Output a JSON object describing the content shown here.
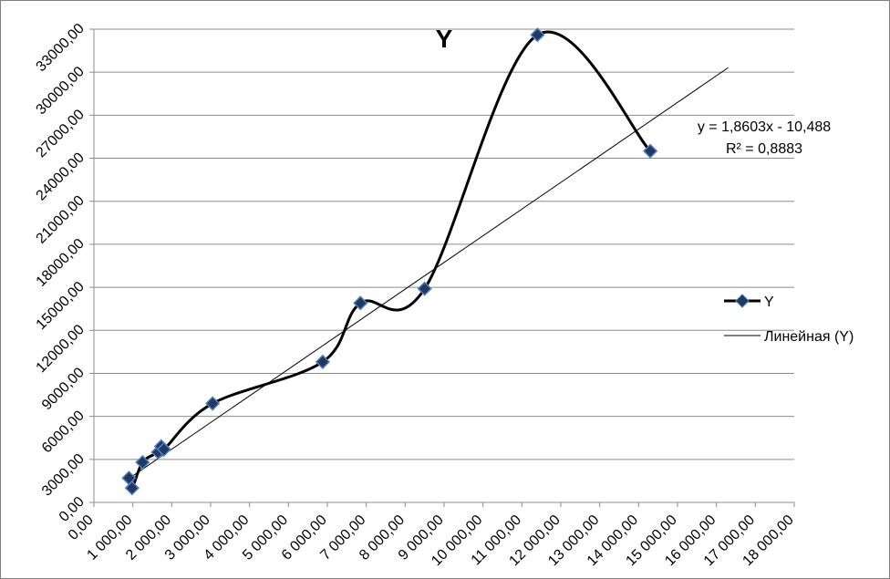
{
  "chart_data": {
    "type": "line",
    "title": "Y",
    "xlabel": "",
    "ylabel": "",
    "xlim": [
      0,
      18000
    ],
    "ylim": [
      0,
      33000
    ],
    "x_ticks": [
      "0,00",
      "1 000,00",
      "2 000,00",
      "3 000,00",
      "4 000,00",
      "5 000,00",
      "6 000,00",
      "7 000,00",
      "8 000,00",
      "9 000,00",
      "10 000,00",
      "11 000,00",
      "12 000,00",
      "13 000,00",
      "14 000,00",
      "15 000,00",
      "16 000,00",
      "17 000,00",
      "18 000,00"
    ],
    "y_ticks": [
      "0,00",
      "3000,00",
      "6000,00",
      "9000,00",
      "12000,00",
      "15000,00",
      "18000,00",
      "21000,00",
      "24000,00",
      "27000,00",
      "30000,00",
      "33000,00"
    ],
    "grid": true,
    "legend_position": "right",
    "series": [
      {
        "name": "Y",
        "color": "#000000",
        "marker_color": "#1f3864",
        "marker_edge": "#4f81bd",
        "points": [
          {
            "x": 900,
            "y": 1700
          },
          {
            "x": 980,
            "y": 1000
          },
          {
            "x": 1250,
            "y": 2800
          },
          {
            "x": 1650,
            "y": 3500
          },
          {
            "x": 1730,
            "y": 3900
          },
          {
            "x": 1800,
            "y": 3700
          },
          {
            "x": 3050,
            "y": 6900
          },
          {
            "x": 5880,
            "y": 9800
          },
          {
            "x": 6850,
            "y": 13900
          },
          {
            "x": 8500,
            "y": 14900
          },
          {
            "x": 11400,
            "y": 32600
          },
          {
            "x": 14300,
            "y": 24500
          }
        ]
      }
    ],
    "trendline": {
      "name": "Линейная (Y)",
      "color": "#000000",
      "slope": 1.8603,
      "intercept": -10.488,
      "x_start": 900,
      "x_end": 16300
    },
    "annotations": {
      "equation": "y = 1,8603x - 10,488",
      "r_squared": "R² = 0,8883"
    }
  }
}
